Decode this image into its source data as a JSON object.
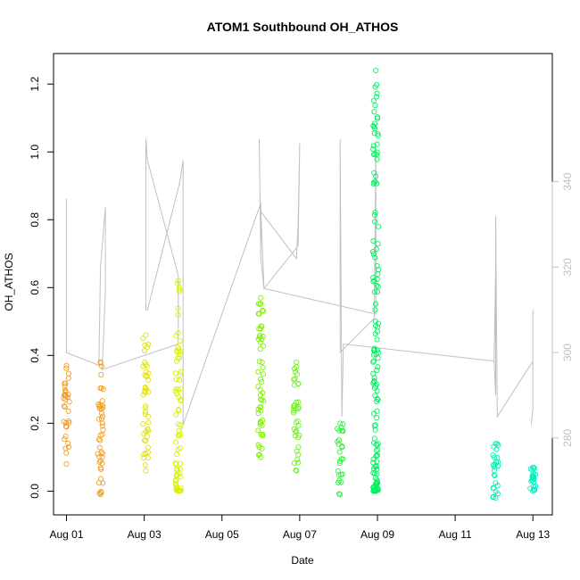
{
  "chart_data": {
    "type": "scatter",
    "title": "ATOM1 Southbound OH_ATHOS",
    "xlabel": "Date",
    "ylabel": "OH_ATHOS",
    "x_axis": {
      "type": "date",
      "range": [
        "2023-07-31T16:00",
        "2023-08-13T12:00"
      ],
      "ticks": [
        "2023-08-01",
        "2023-08-03",
        "2023-08-05",
        "2023-08-07",
        "2023-08-09",
        "2023-08-11",
        "2023-08-13"
      ],
      "tick_labels": [
        "Aug 01",
        "Aug 03",
        "Aug 05",
        "Aug 07",
        "Aug 09",
        "Aug 11",
        "Aug 13"
      ]
    },
    "y_axis": {
      "range": [
        -0.07,
        1.29
      ],
      "ticks": [
        0.0,
        0.2,
        0.4,
        0.6,
        0.8,
        1.0,
        1.2
      ],
      "tick_labels": [
        "0.0",
        "0.2",
        "0.4",
        "0.6",
        "0.8",
        "1.0",
        "1.2"
      ]
    },
    "y2_axis": {
      "range": [
        262,
        370
      ],
      "ticks": [
        280,
        300,
        320,
        340
      ],
      "tick_labels": [
        "280",
        "300",
        "320",
        "340"
      ],
      "color": "#c0c0c0"
    },
    "grid": false,
    "points_style": "open-circle",
    "line_color": "#c0c0c0",
    "clusters": [
      {
        "x": "2023-08-01T00:00",
        "ymin": 0.08,
        "ymax": 0.37,
        "color": "#f39c2a"
      },
      {
        "x": "2023-08-01T21:00",
        "ymin": -0.01,
        "ymax": 0.38,
        "color": "#f0a020"
      },
      {
        "x": "2023-08-03T01:00",
        "ymin": 0.06,
        "ymax": 0.46,
        "color": "#e0e010"
      },
      {
        "x": "2023-08-03T21:00",
        "ymin": 0.0,
        "ymax": 0.62,
        "color": "#d8f000"
      },
      {
        "x": "2023-08-06T00:00",
        "ymin": 0.1,
        "ymax": 0.57,
        "color": "#80f000"
      },
      {
        "x": "2023-08-06T22:00",
        "ymin": 0.06,
        "ymax": 0.38,
        "color": "#70f020"
      },
      {
        "x": "2023-08-08T01:00",
        "ymin": -0.01,
        "ymax": 0.2,
        "color": "#30f040"
      },
      {
        "x": "2023-08-08T23:00",
        "ymin": 0.0,
        "ymax": 1.24,
        "color": "#00f060"
      },
      {
        "x": "2023-08-12T01:00",
        "ymin": -0.02,
        "ymax": 0.14,
        "color": "#00f0b0"
      },
      {
        "x": "2023-08-13T00:00",
        "ymin": 0.0,
        "ymax": 0.07,
        "color": "#00f0c0"
      }
    ],
    "secondary_line": {
      "name": "",
      "x": [
        "2023-08-01T00:00",
        "2023-08-01T00:00",
        "2023-08-01T00:00",
        "2023-08-01T20:00",
        "2023-08-01T21:00",
        "2023-08-02T00:00",
        "2023-08-02T00:00",
        "2023-08-01T22:00",
        "2023-08-03T21:00",
        "2023-08-03T21:00",
        "2023-08-03T02:00",
        "2023-08-03T01:00",
        "2023-08-03T01:00",
        "2023-08-03T02:00",
        "2023-08-03T22:00",
        "2023-08-04T00:00",
        "2023-08-04T00:00",
        "2023-08-03T23:00",
        "2023-08-06T00:00",
        "2023-08-06T00:00",
        "2023-08-05T23:00",
        "2023-08-06T00:00",
        "2023-08-06T02:00",
        "2023-08-06T23:00",
        "2023-08-07T00:00",
        "2023-08-06T23:00",
        "2023-08-06T22:00",
        "2023-08-06T00:00",
        "2023-08-06T02:00",
        "2023-08-08T23:00",
        "2023-08-08T23:00",
        "2023-08-08T22:00",
        "2023-08-08T01:00",
        "2023-08-08T01:00",
        "2023-08-08T02:00",
        "2023-08-08T03:00",
        "2023-08-12T00:00",
        "2023-08-12T01:00",
        "2023-08-12T01:00",
        "2023-08-12T00:00",
        "2023-08-12T01:00",
        "2023-08-12T01:00",
        "2023-08-12T02:00",
        "2023-08-13T00:00",
        "2023-08-13T00:00",
        "2023-08-13T00:00",
        "2023-08-12T23:00"
      ],
      "y2": [
        336,
        320,
        300,
        297,
        320,
        334,
        314,
        296,
        302,
        318,
        345,
        350,
        310,
        310,
        340,
        345,
        283,
        282,
        335,
        322,
        350,
        322,
        315,
        325,
        349,
        330,
        322,
        333,
        315,
        309,
        349,
        308,
        300,
        350,
        285,
        302,
        298,
        290,
        315,
        298,
        320,
        332,
        285,
        298,
        310,
        287,
        283
      ]
    }
  }
}
